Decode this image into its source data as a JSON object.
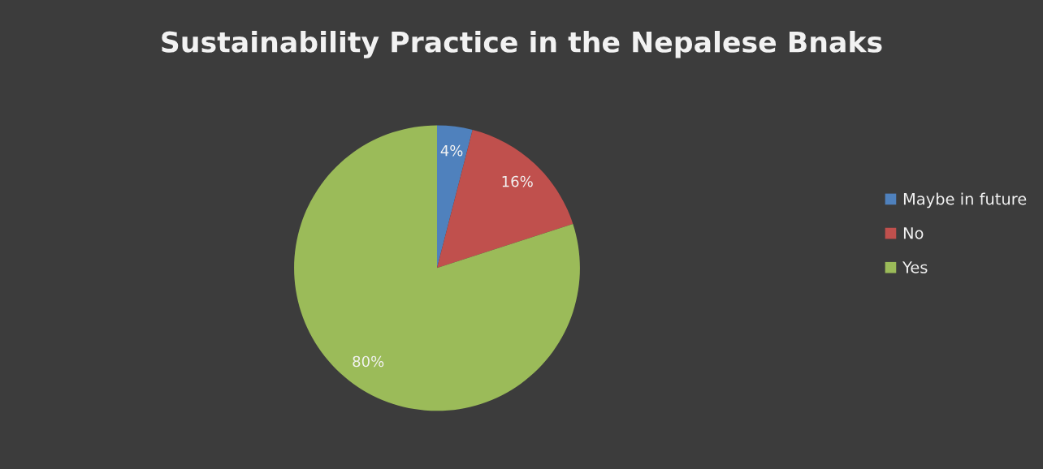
{
  "chart_data": {
    "type": "pie",
    "title": "Sustainability Practice in the Nepalese Bnaks",
    "categories": [
      "Maybe in future",
      "No",
      "Yes"
    ],
    "values": [
      4,
      16,
      80
    ],
    "colors": [
      "#4f81bd",
      "#c0504d",
      "#9bbb59"
    ],
    "value_labels": [
      "4%",
      "16%",
      "80%"
    ],
    "legend": "right"
  }
}
